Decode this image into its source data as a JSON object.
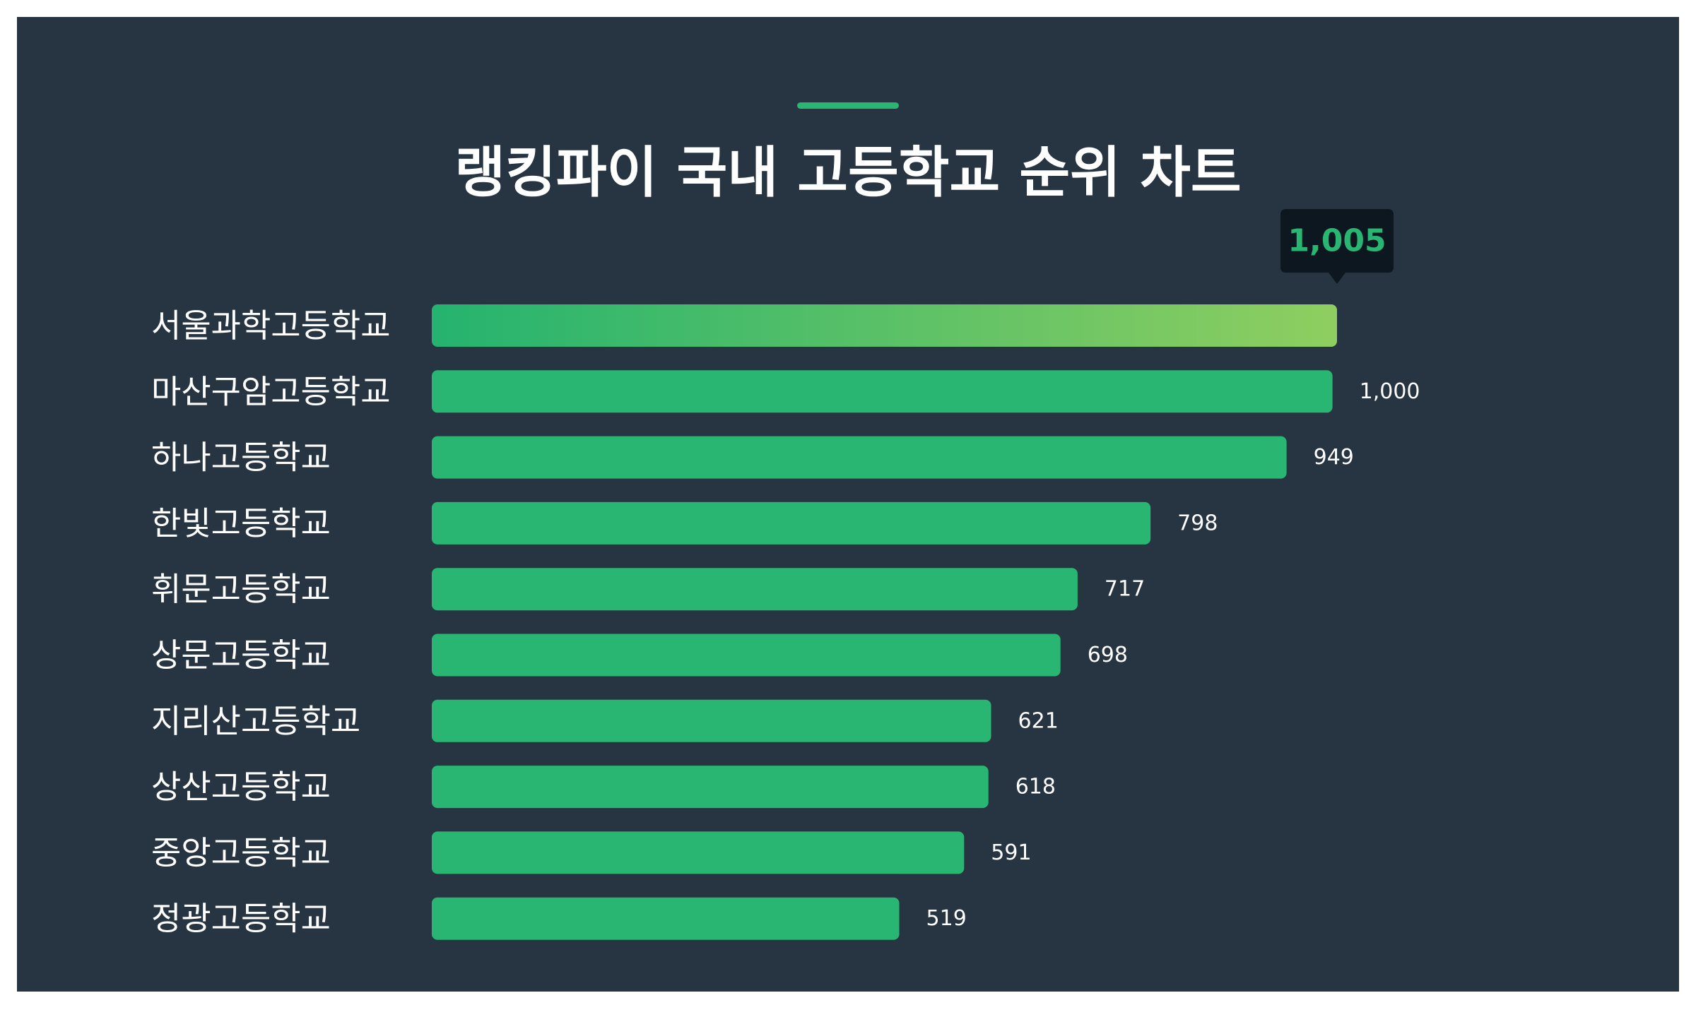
{
  "colors": {
    "background": "#263541",
    "bar": "#29b673",
    "gradient_start": "#25b36f",
    "gradient_end": "#8fce60",
    "tooltip_bg": "#0d1720",
    "text": "#ffffff"
  },
  "chart_data": {
    "type": "bar",
    "orientation": "horizontal",
    "title": "랭킹파이 국내 고등학교 순위 차트",
    "categories": [
      "서울과학고등학교",
      "마산구암고등학교",
      "하나고등학교",
      "한빛고등학교",
      "휘문고등학교",
      "상문고등학교",
      "지리산고등학교",
      "상산고등학교",
      "중앙고등학교",
      "정광고등학교"
    ],
    "values": [
      1005,
      1000,
      949,
      798,
      717,
      698,
      621,
      618,
      591,
      519
    ],
    "value_labels": [
      "1,005",
      "1,000",
      "949",
      "798",
      "717",
      "698",
      "621",
      "618",
      "591",
      "519"
    ],
    "highlight_index": 0,
    "xlim": [
      0,
      1005
    ],
    "grid": false,
    "legend": "none"
  }
}
